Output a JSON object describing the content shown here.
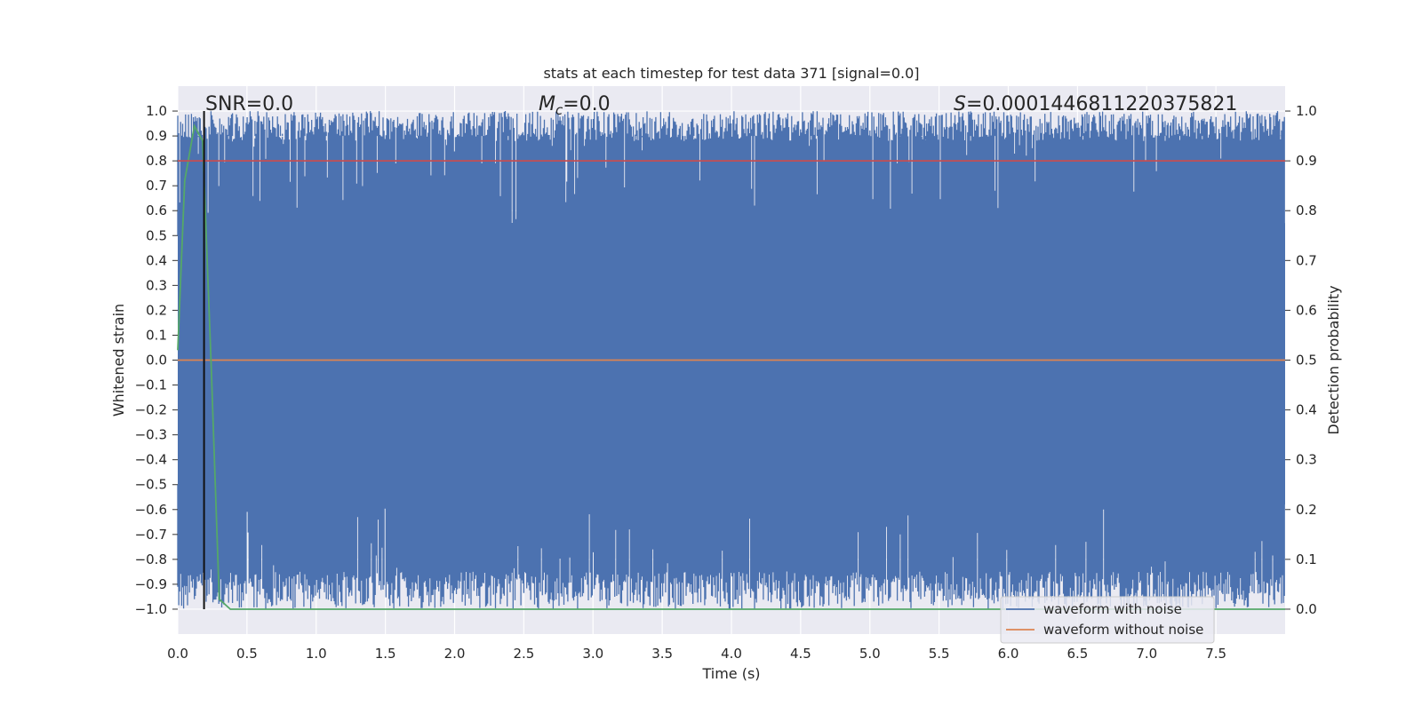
{
  "chart_data": {
    "type": "line",
    "title": "stats at each timestep for test data 371 [signal=0.0]",
    "xlabel": "Time (s)",
    "ylabel": "Whitened strain",
    "ylabel_right": "Detection probability",
    "xlim": [
      0.0,
      8.0
    ],
    "ylim": [
      -1.1,
      1.1
    ],
    "ylim_right": [
      -0.05,
      1.05
    ],
    "x_ticks": [
      0.0,
      0.5,
      1.0,
      1.5,
      2.0,
      2.5,
      3.0,
      3.5,
      4.0,
      4.5,
      5.0,
      5.5,
      6.0,
      6.5,
      7.0,
      7.5
    ],
    "x_tick_labels": [
      "0.0",
      "0.5",
      "1.0",
      "1.5",
      "2.0",
      "2.5",
      "3.0",
      "3.5",
      "4.0",
      "4.5",
      "5.0",
      "5.5",
      "6.0",
      "6.5",
      "7.0",
      "7.5"
    ],
    "y_ticks": [
      1.0,
      0.9,
      0.8,
      0.7,
      0.6,
      0.5,
      0.4,
      0.3,
      0.2,
      0.1,
      0.0,
      -0.1,
      -0.2,
      -0.3,
      -0.4,
      -0.5,
      -0.6,
      -0.7,
      -0.8,
      -0.9,
      -1.0
    ],
    "y_tick_labels": [
      "1.0",
      "0.9",
      "0.8",
      "0.7",
      "0.6",
      "0.5",
      "0.4",
      "0.3",
      "0.2",
      "0.1",
      "0.0",
      "−0.1",
      "−0.2",
      "−0.3",
      "−0.4",
      "−0.5",
      "−0.6",
      "−0.7",
      "−0.8",
      "−0.9",
      "−1.0"
    ],
    "y_right_ticks": [
      1.0,
      0.9,
      0.8,
      0.7,
      0.6,
      0.5,
      0.4,
      0.3,
      0.2,
      0.1,
      0.0
    ],
    "y_right_tick_labels": [
      "1.0",
      "0.9",
      "0.8",
      "0.7",
      "0.6",
      "0.5",
      "0.4",
      "0.3",
      "0.2",
      "0.1",
      "0.0"
    ],
    "grid": true,
    "background": "#eaeaf2",
    "annotations": {
      "snr": "SNR=0.0",
      "mc_symbol": "M",
      "mc_sub": "c",
      "mc_value": "=0.0",
      "s_symbol": "S",
      "s_value": "=0.0001446811220375821"
    },
    "series": [
      {
        "name": "waveform with noise",
        "color": "#4c72b0",
        "kind": "noise-band",
        "x_range": [
          0.0,
          8.0
        ],
        "y_range": [
          -1.0,
          1.0
        ]
      },
      {
        "name": "waveform without noise",
        "color": "#dd8452",
        "x": [
          0.0,
          8.0
        ],
        "y": [
          0.0,
          0.0
        ]
      },
      {
        "name": "",
        "color": "#55a868",
        "axis": "right",
        "x": [
          0.0,
          0.05,
          0.12,
          0.18,
          0.24,
          0.3,
          0.38,
          8.0
        ],
        "y": [
          0.52,
          0.86,
          0.97,
          0.94,
          0.5,
          0.02,
          0.0,
          0.0
        ]
      },
      {
        "name": "",
        "color": "#c44e52",
        "axis": "right",
        "x": [
          0.0,
          8.0
        ],
        "y": [
          0.9,
          0.9
        ]
      }
    ],
    "vline": {
      "x": 0.19,
      "color": "#111111"
    },
    "legend": {
      "placement": "bottom-right",
      "entries": [
        "waveform with noise",
        "waveform without noise"
      ]
    }
  }
}
